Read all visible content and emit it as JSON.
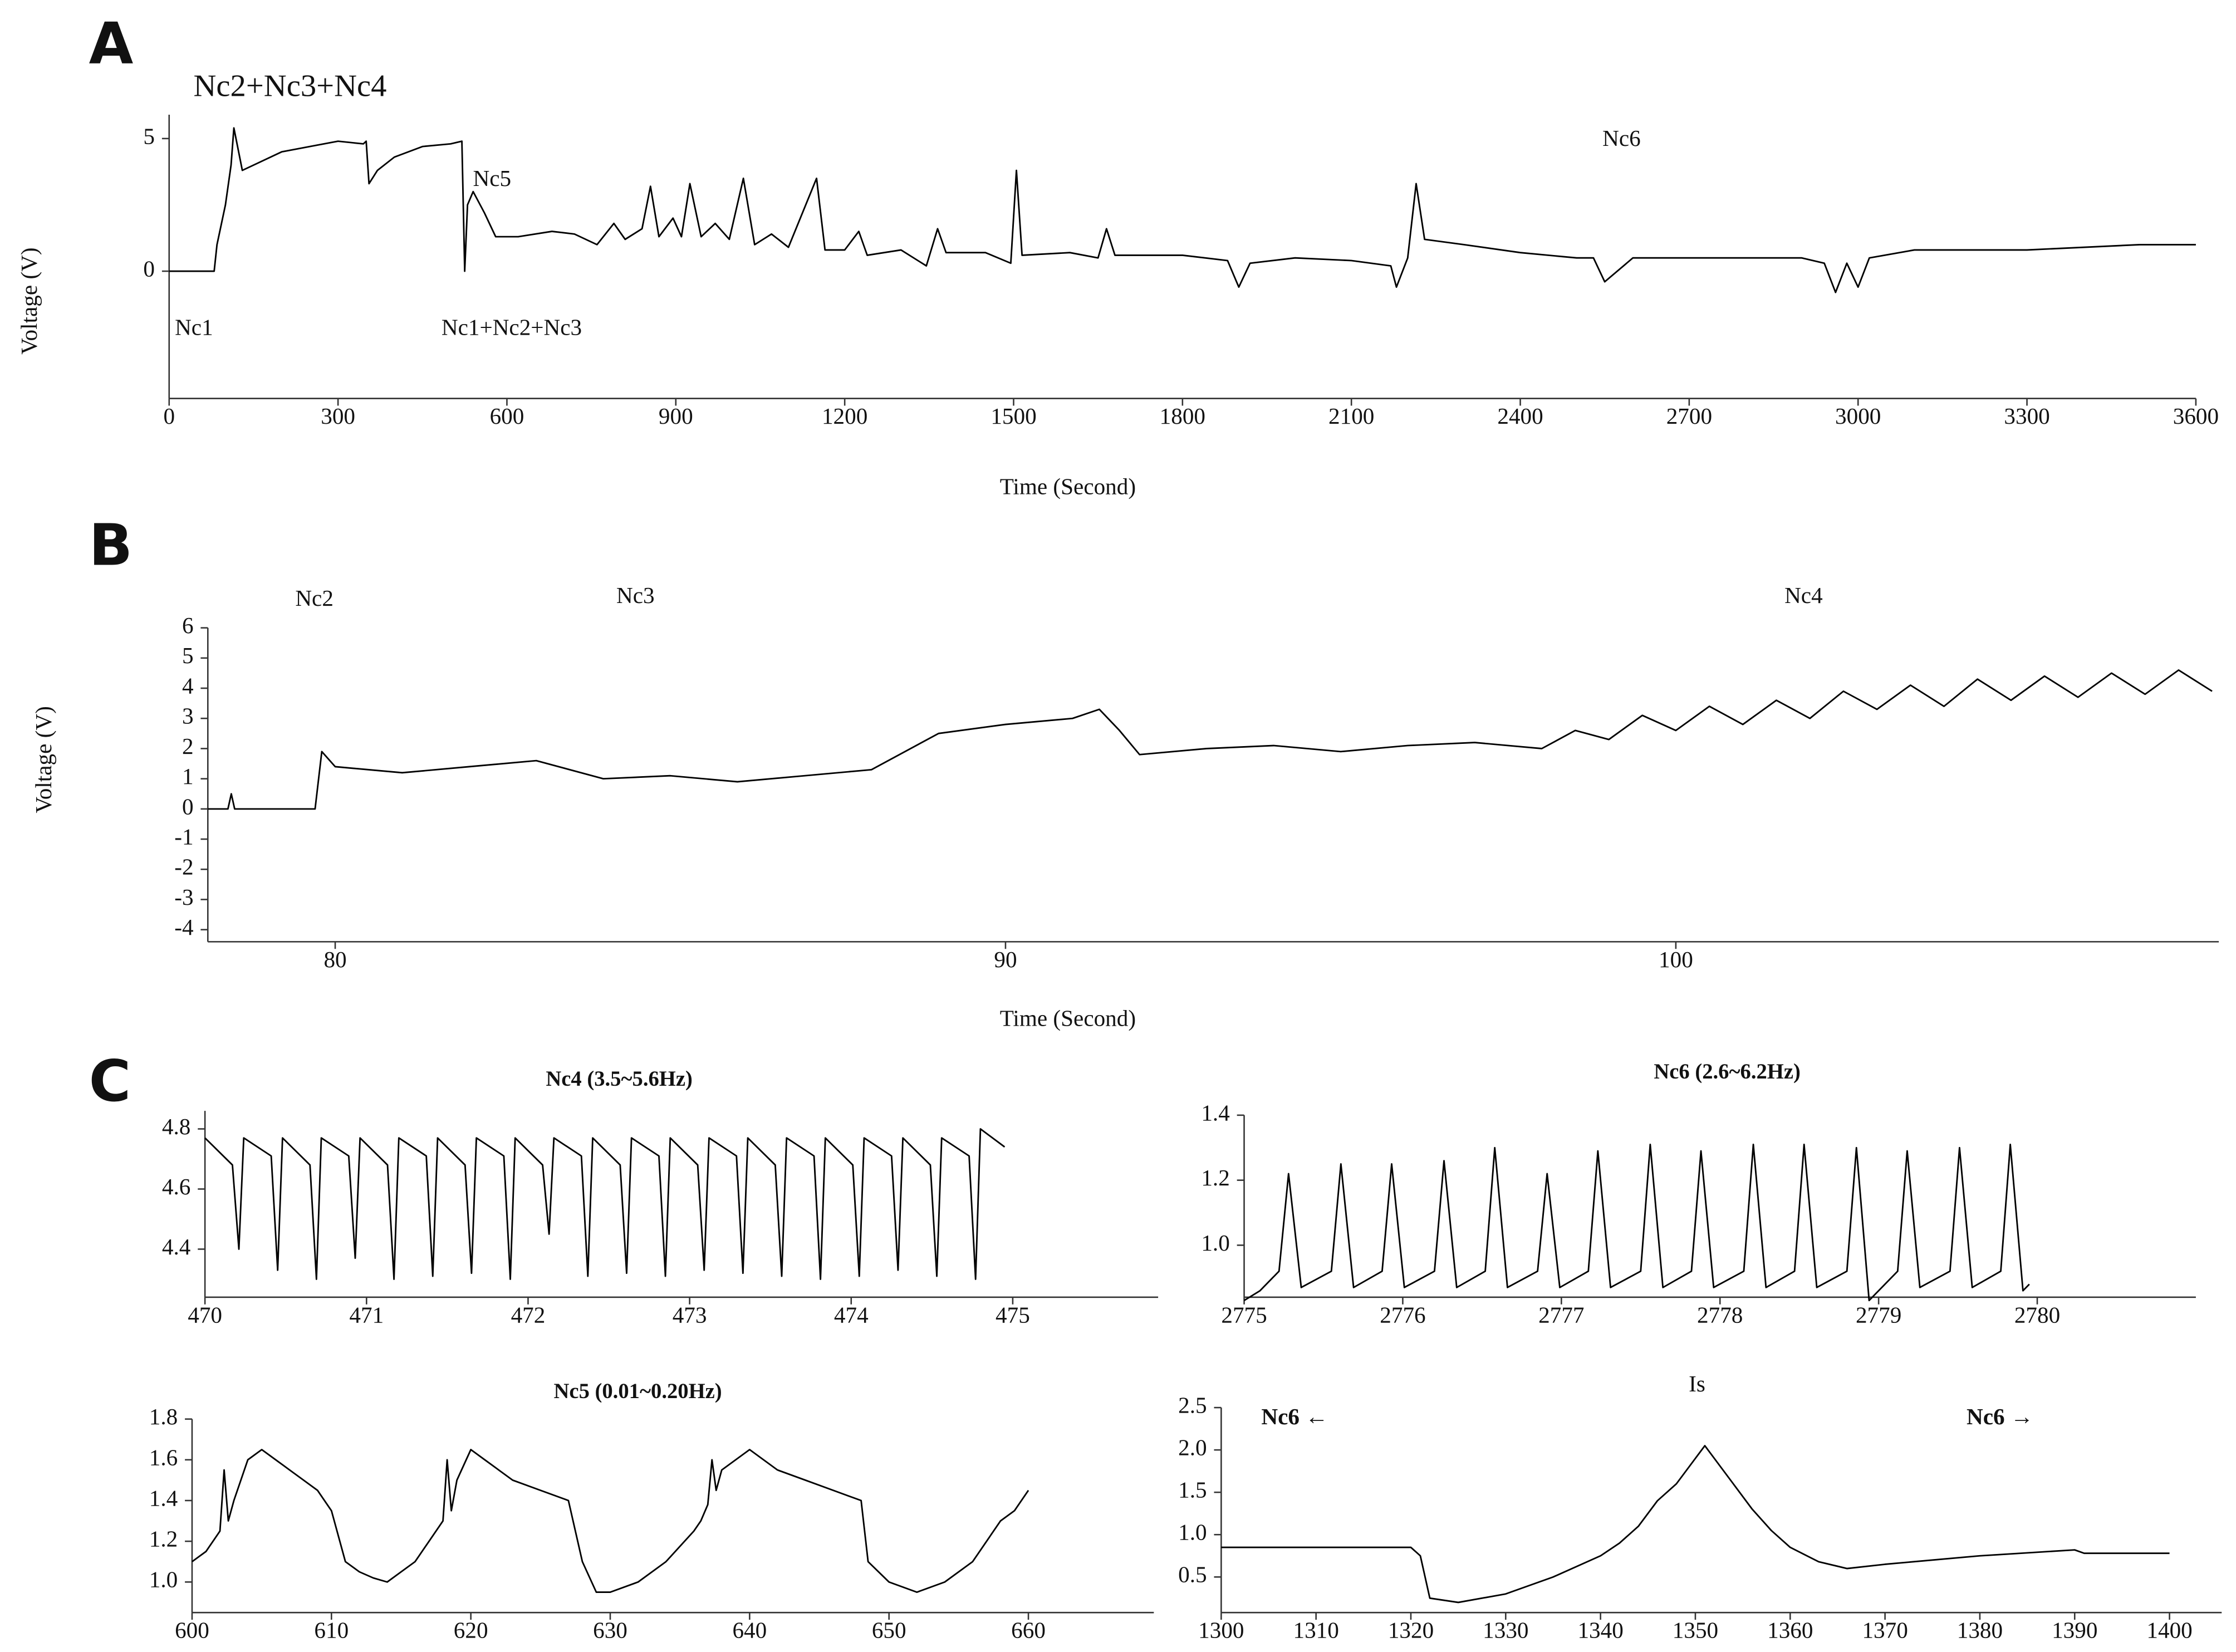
{
  "chart_data": [
    {
      "type": "line",
      "panel_label": "A",
      "xlabel": "Time (Second)",
      "ylabel": "Voltage (V)",
      "annotations": [
        "Nc2+Nc3+Nc4",
        "Nc5",
        "Nc6",
        "Nc1",
        "Nc1+Nc2+Nc3"
      ],
      "xlim": [
        0,
        3600
      ],
      "xticks": [
        0,
        300,
        600,
        900,
        1200,
        1500,
        1800,
        2100,
        2400,
        2700,
        3000,
        3300,
        3600
      ],
      "ylim": [
        -4.8,
        5.9
      ],
      "yticks": [
        0,
        5
      ],
      "color": "#000000",
      "x": [
        0,
        80,
        85,
        100,
        110,
        115,
        130,
        150,
        200,
        250,
        300,
        345,
        350,
        355,
        370,
        400,
        450,
        500,
        520,
        525,
        530,
        540,
        560,
        580,
        620,
        680,
        720,
        760,
        790,
        810,
        840,
        855,
        870,
        895,
        910,
        925,
        945,
        970,
        995,
        1020,
        1040,
        1070,
        1100,
        1150,
        1165,
        1200,
        1225,
        1240,
        1300,
        1345,
        1365,
        1380,
        1450,
        1495,
        1505,
        1515,
        1600,
        1650,
        1665,
        1680,
        1800,
        1880,
        1900,
        1920,
        2000,
        2100,
        2170,
        2180,
        2200,
        2215,
        2230,
        2300,
        2400,
        2500,
        2530,
        2550,
        2600,
        2700,
        2800,
        2900,
        2940,
        2960,
        2980,
        3000,
        3020,
        3100,
        3200,
        3300,
        3400,
        3500,
        3600
      ],
      "values": [
        0,
        0,
        1.0,
        2.5,
        4.0,
        5.4,
        3.8,
        4.0,
        4.5,
        4.7,
        4.9,
        4.8,
        4.9,
        3.3,
        3.8,
        4.3,
        4.7,
        4.8,
        4.9,
        0.0,
        2.5,
        3.0,
        2.2,
        1.3,
        1.3,
        1.5,
        1.4,
        1.0,
        1.8,
        1.2,
        1.6,
        3.2,
        1.3,
        2.0,
        1.3,
        3.3,
        1.3,
        1.8,
        1.2,
        3.5,
        1.0,
        1.4,
        0.9,
        3.5,
        0.8,
        0.8,
        1.5,
        0.6,
        0.8,
        0.2,
        1.6,
        0.7,
        0.7,
        0.3,
        3.8,
        0.6,
        0.7,
        0.5,
        1.6,
        0.6,
        0.6,
        0.4,
        -0.6,
        0.3,
        0.5,
        0.4,
        0.2,
        -0.6,
        0.5,
        3.3,
        1.2,
        1.0,
        0.7,
        0.5,
        0.5,
        -0.4,
        0.5,
        0.5,
        0.5,
        0.5,
        0.3,
        -0.8,
        0.3,
        -0.6,
        0.5,
        0.8,
        0.8,
        0.8,
        0.9,
        1.0,
        1.0
      ]
    },
    {
      "type": "line",
      "panel_label": "B",
      "xlabel": "Time (Second)",
      "ylabel": "Voltage (V)",
      "annotations": [
        "Nc2",
        "Nc3",
        "Nc4"
      ],
      "xlim": [
        78.1,
        108.1
      ],
      "xticks": [
        80,
        90,
        100
      ],
      "ylim": [
        -4.4,
        6
      ],
      "yticks": [
        -4,
        -3,
        -2,
        -1,
        0,
        1,
        2,
        3,
        4,
        5,
        6
      ],
      "color": "#000000",
      "x": [
        78.1,
        78.4,
        78.45,
        78.5,
        79.7,
        79.8,
        80,
        81,
        82,
        83,
        84,
        85,
        86,
        87,
        88,
        89,
        90,
        91,
        91.4,
        91.7,
        92,
        93,
        94,
        95,
        96,
        97,
        98,
        98.5,
        99,
        99.5,
        100,
        100.5,
        101,
        101.5,
        102,
        102.5,
        103,
        103.5,
        104,
        104.5,
        105,
        105.5,
        106,
        106.5,
        107,
        107.5,
        108
      ],
      "values": [
        0,
        0,
        0.5,
        0,
        0,
        1.9,
        1.4,
        1.2,
        1.4,
        1.6,
        1.0,
        1.1,
        0.9,
        1.1,
        1.3,
        2.5,
        2.8,
        3.0,
        3.3,
        2.6,
        1.8,
        2.0,
        2.1,
        1.9,
        2.1,
        2.2,
        2.0,
        2.6,
        2.3,
        3.1,
        2.6,
        3.4,
        2.8,
        3.6,
        3.0,
        3.9,
        3.3,
        4.1,
        3.4,
        4.3,
        3.6,
        4.4,
        3.7,
        4.5,
        3.8,
        4.6,
        3.9
      ]
    },
    {
      "type": "line",
      "panel_label": "C",
      "title": "Nc4 (3.5~5.6Hz)",
      "xlim": [
        470,
        475.9
      ],
      "xticks": [
        470,
        471,
        472,
        473,
        474,
        475
      ],
      "ylim": [
        4.24,
        4.86
      ],
      "yticks": [
        4.4,
        4.6,
        4.8
      ],
      "color": "#000000",
      "x": [
        470.0,
        470.17,
        470.21,
        470.24,
        470.41,
        470.45,
        470.48,
        470.65,
        470.69,
        470.72,
        470.89,
        470.93,
        470.96,
        471.13,
        471.17,
        471.2,
        471.37,
        471.41,
        471.44,
        471.61,
        471.65,
        471.68,
        471.85,
        471.89,
        471.92,
        472.09,
        472.13,
        472.16,
        472.33,
        472.37,
        472.4,
        472.57,
        472.61,
        472.64,
        472.81,
        472.85,
        472.88,
        473.05,
        473.09,
        473.12,
        473.29,
        473.33,
        473.36,
        473.53,
        473.57,
        473.6,
        473.77,
        473.81,
        473.84,
        474.01,
        474.05,
        474.08,
        474.25,
        474.29,
        474.32,
        474.49,
        474.53,
        474.56,
        474.73,
        474.77,
        474.8,
        474.95
      ],
      "values": [
        4.77,
        4.68,
        4.4,
        4.77,
        4.71,
        4.33,
        4.77,
        4.68,
        4.3,
        4.77,
        4.71,
        4.37,
        4.77,
        4.68,
        4.3,
        4.77,
        4.71,
        4.31,
        4.77,
        4.68,
        4.32,
        4.77,
        4.71,
        4.3,
        4.77,
        4.68,
        4.45,
        4.77,
        4.71,
        4.31,
        4.77,
        4.68,
        4.32,
        4.77,
        4.71,
        4.31,
        4.77,
        4.68,
        4.33,
        4.77,
        4.71,
        4.32,
        4.77,
        4.68,
        4.31,
        4.77,
        4.71,
        4.3,
        4.77,
        4.68,
        4.31,
        4.77,
        4.71,
        4.33,
        4.77,
        4.68,
        4.31,
        4.77,
        4.71,
        4.3,
        4.8,
        4.74
      ]
    },
    {
      "type": "line",
      "title": "Nc6 (2.6~6.2Hz)",
      "xlim": [
        2775,
        2781
      ],
      "xticks": [
        2775,
        2776,
        2777,
        2778,
        2779,
        2780
      ],
      "ylim": [
        0.84,
        1.4
      ],
      "yticks": [
        {
          "value": 1.0,
          "label": "1.0"
        },
        1.2,
        1.4
      ],
      "color": "#000000",
      "x": [
        2775.0,
        2775.1,
        2775.22,
        2775.28,
        2775.36,
        2775.55,
        2775.61,
        2775.69,
        2775.87,
        2775.93,
        2776.01,
        2776.2,
        2776.26,
        2776.34,
        2776.52,
        2776.58,
        2776.66,
        2776.85,
        2776.91,
        2776.99,
        2777.17,
        2777.23,
        2777.31,
        2777.5,
        2777.56,
        2777.64,
        2777.82,
        2777.88,
        2777.96,
        2778.15,
        2778.21,
        2778.29,
        2778.47,
        2778.53,
        2778.61,
        2778.8,
        2778.86,
        2778.94,
        2779.12,
        2779.18,
        2779.26,
        2779.45,
        2779.51,
        2779.59,
        2779.77,
        2779.83,
        2779.91,
        2779.95
      ],
      "values": [
        0.83,
        0.86,
        0.92,
        1.22,
        0.87,
        0.92,
        1.25,
        0.87,
        0.92,
        1.25,
        0.87,
        0.92,
        1.26,
        0.87,
        0.92,
        1.3,
        0.87,
        0.92,
        1.22,
        0.87,
        0.92,
        1.29,
        0.87,
        0.92,
        1.31,
        0.87,
        0.92,
        1.29,
        0.87,
        0.92,
        1.31,
        0.87,
        0.92,
        1.31,
        0.87,
        0.92,
        1.3,
        0.83,
        0.92,
        1.29,
        0.87,
        0.92,
        1.3,
        0.87,
        0.92,
        1.31,
        0.86,
        0.88
      ]
    },
    {
      "type": "line",
      "title": "Nc5 (0.01~0.20Hz)",
      "xlim": [
        600,
        669
      ],
      "xticks": [
        600,
        610,
        620,
        630,
        640,
        650,
        660
      ],
      "ylim": [
        0.85,
        1.8
      ],
      "yticks": [
        {
          "value": 1.0,
          "label": "1.0"
        },
        1.2,
        1.4,
        1.6,
        1.8
      ],
      "color": "#000000",
      "x": [
        600,
        601,
        602,
        602.3,
        602.6,
        603,
        604,
        605,
        606,
        607,
        608,
        609,
        610,
        611,
        612,
        613,
        614,
        615,
        616,
        617,
        618,
        618.3,
        618.6,
        619,
        620,
        621,
        622,
        623,
        625,
        627,
        628,
        629,
        630,
        632,
        634,
        636,
        636.5,
        637,
        637.3,
        637.6,
        638,
        640,
        642,
        644,
        646,
        648,
        648.5,
        650,
        652,
        654,
        656,
        658,
        659,
        660
      ],
      "values": [
        1.1,
        1.15,
        1.25,
        1.55,
        1.3,
        1.4,
        1.6,
        1.65,
        1.6,
        1.55,
        1.5,
        1.45,
        1.35,
        1.1,
        1.05,
        1.02,
        1.0,
        1.05,
        1.1,
        1.2,
        1.3,
        1.6,
        1.35,
        1.5,
        1.65,
        1.6,
        1.55,
        1.5,
        1.45,
        1.4,
        1.1,
        0.95,
        0.95,
        1.0,
        1.1,
        1.25,
        1.3,
        1.38,
        1.6,
        1.45,
        1.55,
        1.65,
        1.55,
        1.5,
        1.45,
        1.4,
        1.1,
        1.0,
        0.95,
        1.0,
        1.1,
        1.3,
        1.35,
        1.45
      ]
    },
    {
      "type": "line",
      "title": "Is",
      "annotations": [
        "Nc6 ←",
        "Nc6 →"
      ],
      "xlim": [
        1300,
        1405.5
      ],
      "xticks": [
        1300,
        1310,
        1320,
        1330,
        1340,
        1350,
        1360,
        1370,
        1380,
        1390,
        1400
      ],
      "ylim": [
        0.08,
        2.5
      ],
      "yticks": [
        0.5,
        {
          "value": 1.0,
          "label": "1.0"
        },
        1.5,
        {
          "value": 2.0,
          "label": "2.0"
        },
        2.5
      ],
      "color": "#000000",
      "x": [
        1300,
        1310,
        1320,
        1321,
        1322,
        1325,
        1330,
        1335,
        1340,
        1342,
        1344,
        1346,
        1348,
        1350,
        1351,
        1352,
        1354,
        1356,
        1358,
        1360,
        1363,
        1366,
        1370,
        1380,
        1390,
        1391,
        1400
      ],
      "values": [
        0.85,
        0.85,
        0.85,
        0.75,
        0.25,
        0.2,
        0.3,
        0.5,
        0.75,
        0.9,
        1.1,
        1.4,
        1.6,
        1.9,
        2.05,
        1.9,
        1.6,
        1.3,
        1.05,
        0.85,
        0.68,
        0.6,
        0.65,
        0.75,
        0.82,
        0.78,
        0.78
      ]
    }
  ]
}
